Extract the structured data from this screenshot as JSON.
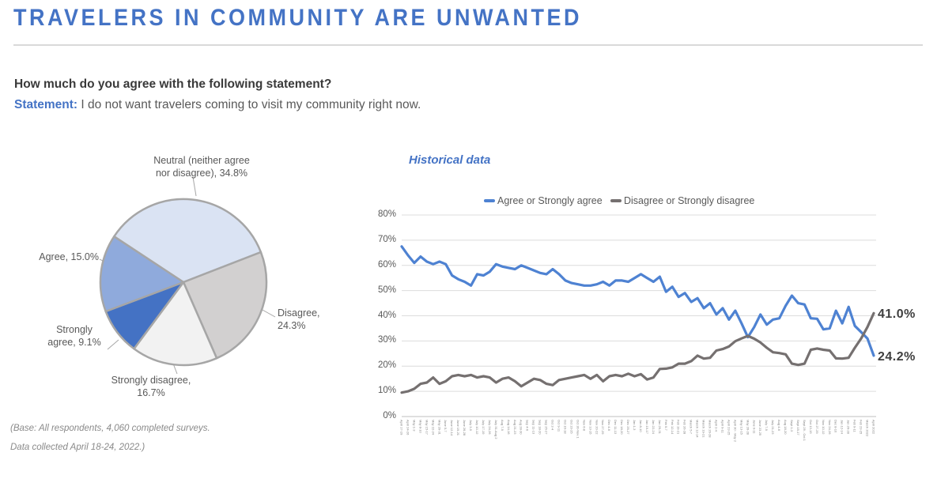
{
  "header": {
    "title": "TRAVELERS IN COMMUNITY ARE UNWANTED"
  },
  "question": {
    "prompt": "How much do you agree with the following statement?",
    "statement_label": "Statement:",
    "statement_text": " I do not want travelers coming to visit my community right now."
  },
  "footer": {
    "line1": "(Base: All respondents, 4,060 completed surveys.",
    "line2": "Data collected April 18-24, 2022.)"
  },
  "chart_data": [
    {
      "type": "pie",
      "start_angle_deg": 303.4,
      "stroke": "#a6a6a6",
      "slices": [
        {
          "name": "Neutral (neither agree nor disagree)",
          "value": 34.8,
          "color": "#dae3f3",
          "label": "Neutral (neither agree\nnor disagree), 34.8%"
        },
        {
          "name": "Disagree",
          "value": 24.3,
          "color": "#d2d0d0",
          "label": "Disagree,\n24.3%"
        },
        {
          "name": "Strongly disagree",
          "value": 16.7,
          "color": "#f2f2f2",
          "label": "Strongly disagree,\n16.7%"
        },
        {
          "name": "Strongly agree",
          "value": 9.1,
          "color": "#4472c4",
          "label": "Strongly\nagree, 9.1%"
        },
        {
          "name": "Agree",
          "value": 15.0,
          "color": "#8faadc",
          "label": "Agree, 15.0%"
        }
      ]
    },
    {
      "type": "line",
      "title": "Historical data",
      "ylim": [
        0,
        80
      ],
      "grid": true,
      "legend_position": "top",
      "y_ticks": [
        "0%",
        "10%",
        "20%",
        "30%",
        "40%",
        "50%",
        "60%",
        "70%",
        "80%"
      ],
      "legend": [
        {
          "label": "Agree or Strongly agree",
          "color": "#4e82d2"
        },
        {
          "label": "Disagree or Strongly disagree",
          "color": "#757070"
        }
      ],
      "x": [
        "April 17-19",
        "April 24-26",
        "May 1-3",
        "May 8-10",
        "May 15-17",
        "May 22-24",
        "May 29-31",
        "June 5-7",
        "June 12-14",
        "June 19-21",
        "June 26-28",
        "July 3-5",
        "July 10-12",
        "July 17-19",
        "July 24-26",
        "July 31-Aug 2",
        "Aug 7-9",
        "Aug 14-16",
        "Aug 21-23",
        "Aug 28-30",
        "Sep 4-6",
        "Sep 11-13",
        "Sep 18-20",
        "Sep 25-27",
        "Oct 2-4",
        "Oct 9-11",
        "Oct 16-18",
        "Oct 23-25",
        "Oct 30-Nov 1",
        "Nov 6-8",
        "Nov 13-15",
        "Nov 20-22",
        "Nov 27-29",
        "Dec 4-6",
        "Dec 11-13",
        "Dec 18-20",
        "Dec 25-27",
        "Jan 1-3",
        "Jan 8-10",
        "Jan 15-17",
        "Jan 22-24",
        "Jan 29-31",
        "Feb 5-7",
        "Feb 12-14",
        "Feb 19-21",
        "Feb 26-28",
        "March 5-7",
        "March 12-14",
        "March 19-21",
        "March 26-28",
        "April 2-4",
        "April 9-11",
        "April 23-25",
        "April 30 - May 2",
        "May 13-15",
        "May 26-28",
        "June 9-11",
        "June 23-25",
        "July 7-9",
        "July 21-23",
        "Aug 4-6",
        "Aug 18-20",
        "Sept 1-3",
        "Sept 15-17",
        "Sept 29 - Oct 1",
        "Oct 13-15",
        "Oct 27-29",
        "Nov 10-12",
        "Nov 24-26",
        "Dec 8-10",
        "Jan 12-14",
        "Jan 26-28",
        "Feb 9-11",
        "Feb 23-25",
        "March 2022",
        "April 2022"
      ],
      "series": [
        {
          "name": "Agree or Strongly agree",
          "color": "#4e82d2",
          "end_label": "24.2%",
          "values": [
            67.5,
            64.0,
            61.0,
            63.5,
            61.5,
            60.5,
            61.5,
            60.5,
            56.0,
            54.5,
            53.5,
            52.0,
            56.5,
            56.0,
            57.5,
            60.5,
            59.5,
            59.0,
            58.5,
            60.0,
            59.0,
            58.0,
            57.0,
            56.5,
            58.5,
            56.5,
            54.0,
            53.0,
            52.5,
            52.0,
            52.0,
            52.5,
            53.5,
            52.0,
            54.0,
            54.0,
            53.5,
            55.0,
            56.5,
            55.0,
            53.5,
            55.5,
            49.5,
            51.5,
            47.5,
            49.0,
            45.5,
            47.0,
            43.0,
            45.0,
            40.5,
            43.0,
            38.5,
            42.0,
            37.0,
            31.5,
            35.5,
            40.5,
            36.5,
            38.5,
            39.0,
            44.0,
            48.0,
            45.0,
            44.5,
            39.0,
            38.8,
            34.6,
            35.0,
            42.0,
            37.0,
            43.5,
            36.0,
            33.5,
            31.0,
            24.2
          ]
        },
        {
          "name": "Disagree or Strongly disagree",
          "color": "#757070",
          "end_label": "41.0%",
          "values": [
            9.5,
            10.0,
            11.0,
            13.0,
            13.5,
            15.5,
            13.0,
            14.0,
            16.0,
            16.5,
            16.0,
            16.5,
            15.5,
            16.0,
            15.5,
            13.5,
            15.0,
            15.5,
            14.0,
            12.0,
            13.5,
            15.0,
            14.5,
            13.0,
            12.5,
            14.5,
            15.0,
            15.5,
            16.0,
            16.5,
            15.0,
            16.5,
            14.0,
            16.0,
            16.5,
            16.0,
            17.0,
            16.0,
            16.8,
            14.7,
            15.5,
            18.9,
            19.0,
            19.5,
            21.0,
            21.0,
            22.0,
            24.2,
            23.0,
            23.3,
            26.2,
            26.8,
            27.8,
            29.9,
            31.0,
            32.0,
            30.9,
            29.4,
            27.3,
            25.5,
            25.2,
            24.7,
            21.0,
            20.5,
            21.0,
            26.5,
            27.0,
            26.5,
            26.2,
            23.1,
            23.0,
            23.3,
            27.3,
            31.0,
            35.5,
            41.0
          ]
        }
      ]
    }
  ]
}
